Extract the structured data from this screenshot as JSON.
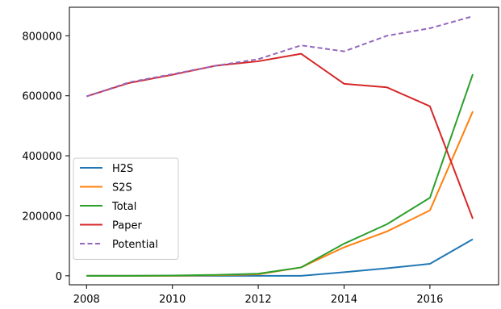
{
  "chart_data": {
    "type": "line",
    "x": [
      2008,
      2009,
      2010,
      2011,
      2012,
      2013,
      2014,
      2015,
      2016,
      2017
    ],
    "xlim": [
      2007.6,
      2017.6
    ],
    "ylim": [
      -30000,
      895000
    ],
    "x_ticks": [
      2008,
      2010,
      2012,
      2014,
      2016
    ],
    "x_tick_labels": [
      "2008",
      "2010",
      "2012",
      "2014",
      "2016"
    ],
    "y_ticks": [
      0,
      200000,
      400000,
      600000,
      800000
    ],
    "y_tick_labels": [
      "0",
      "200000",
      "400000",
      "600000",
      "800000"
    ],
    "grid": false,
    "legend_position": "lower-left",
    "series": [
      {
        "name": "H2S",
        "color": "#1f77b4",
        "dashed": false,
        "values": [
          0,
          0,
          0,
          0,
          0,
          0,
          12000,
          25000,
          40000,
          122000
        ]
      },
      {
        "name": "S2S",
        "color": "#ff7f0e",
        "dashed": false,
        "values": [
          0,
          0,
          0,
          2000,
          5000,
          28000,
          95000,
          148000,
          218000,
          548000
        ]
      },
      {
        "name": "Total",
        "color": "#2ca02c",
        "dashed": false,
        "values": [
          0,
          0,
          1000,
          3000,
          7000,
          28000,
          107000,
          172000,
          260000,
          672000
        ]
      },
      {
        "name": "Paper",
        "color": "#d62728",
        "dashed": false,
        "values": [
          598000,
          643000,
          670000,
          700000,
          715000,
          740000,
          640000,
          628000,
          565000,
          190000
        ]
      },
      {
        "name": "Potential",
        "color": "#9467bd",
        "dashed": true,
        "values": [
          598000,
          645000,
          672000,
          700000,
          722000,
          768000,
          748000,
          800000,
          825000,
          865000
        ]
      }
    ]
  }
}
